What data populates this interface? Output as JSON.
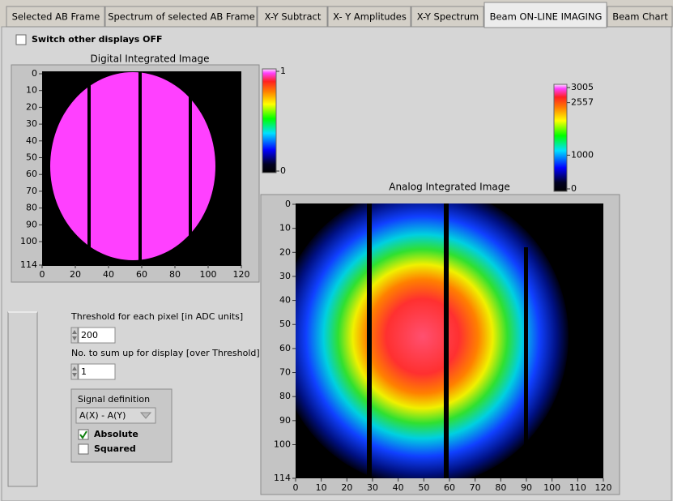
{
  "tabs": [
    "Selected AB Frame",
    "Spectrum of selected AB Frame",
    "X-Y Subtract",
    "X- Y Amplitudes",
    "X-Y Spectrum",
    "Beam ON-LINE IMAGING",
    "Beam Chart"
  ],
  "switch_checkbox": {
    "label": "Switch other displays OFF",
    "checked": false
  },
  "digital_image": {
    "title": "Digital Integrated Image",
    "yticks": [
      0,
      10,
      20,
      30,
      40,
      50,
      60,
      70,
      80,
      90,
      100,
      114
    ],
    "xticks": [
      0,
      20,
      40,
      60,
      80,
      100,
      120
    ],
    "colorbar_ticks": [
      1,
      0
    ]
  },
  "analog_image": {
    "title": "Analog Integrated Image",
    "yticks": [
      0,
      10,
      20,
      30,
      40,
      50,
      60,
      70,
      80,
      90,
      100,
      114
    ],
    "xticks": [
      0,
      10,
      20,
      30,
      40,
      50,
      60,
      70,
      80,
      90,
      100,
      110,
      120
    ],
    "colorbar_ticks": [
      3005,
      2557,
      1000,
      0
    ]
  },
  "threshold": {
    "label": "Threshold for each pixel [in ADC units]",
    "value": 200
  },
  "sum_up": {
    "label": "No. to sum up for display [over Threshold]",
    "value": 1
  },
  "signal_definition": {
    "title": "Signal definition",
    "selection": "A(X) - A(Y)",
    "options": [
      {
        "label": "Absolute",
        "checked": true
      },
      {
        "label": "Squared",
        "checked": false
      }
    ]
  }
}
